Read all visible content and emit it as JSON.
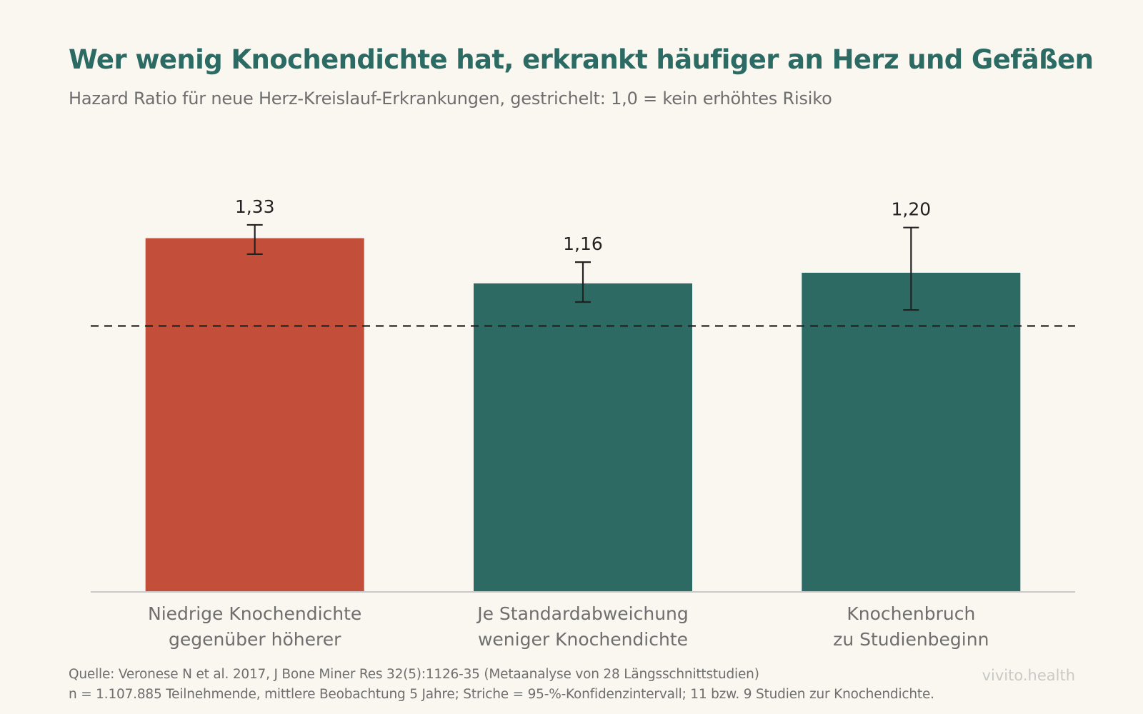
{
  "title": "Wer wenig Knochendichte hat, erkrankt häufiger an Herz und Gefäßen",
  "subtitle": "Hazard Ratio für neue Herz-Kreislauf-Erkrankungen, gestrichelt: 1,0 = kein erhöhtes Risiko",
  "footer": {
    "source": "Quelle: Veronese N et al. 2017, J Bone Miner Res 32(5):1126-35 (Metaanalyse von 28 Längsschnittstudien)",
    "note": "n = 1.107.885 Teilnehmende, mittlere Beobachtung 5 Jahre; Striche = 95-%-Konfidenzintervall; 11 bzw. 9 Studien zur Knochendichte.",
    "brand": "vivito.health"
  },
  "colors": {
    "highlight": "#c34e3a",
    "primary": "#2c6a63",
    "title": "#2b6b64",
    "reference_line": "#222222",
    "axis": "#c8c8c8",
    "background": "#faf7f1"
  },
  "chart_data": {
    "type": "bar",
    "categories": [
      [
        "Niedrige Knochendichte",
        "gegenüber höherer"
      ],
      [
        "Je Standardabweichung",
        "weniger Knochendichte"
      ],
      [
        "Knochenbruch",
        "zu Studienbeginn"
      ]
    ],
    "values": [
      1.33,
      1.16,
      1.2
    ],
    "value_labels": [
      "1,33",
      "1,16",
      "1,20"
    ],
    "ci_low": [
      1.27,
      1.09,
      1.06
    ],
    "ci_high": [
      1.38,
      1.24,
      1.37
    ],
    "bar_colors": [
      "#c34e3a",
      "#2c6a63",
      "#2c6a63"
    ],
    "reference_line": 1.0,
    "ylim": [
      0,
      1.35
    ],
    "show_y_axis": false,
    "grid": false,
    "legend": "none"
  }
}
